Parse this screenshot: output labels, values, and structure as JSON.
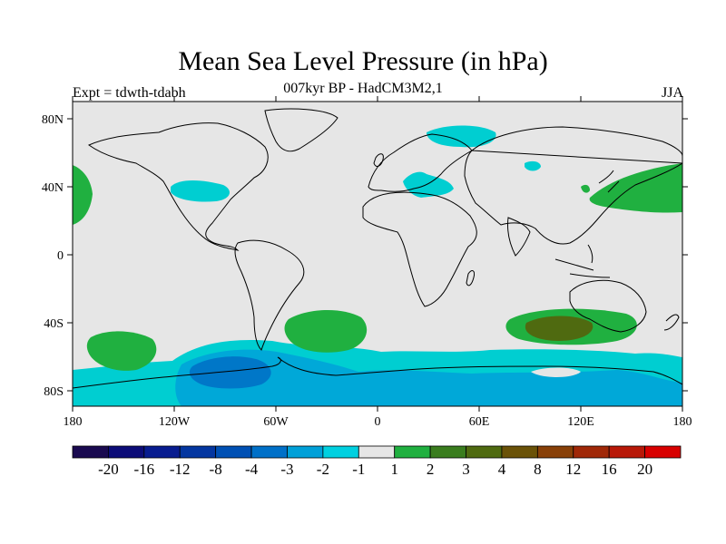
{
  "title": "Mean Sea Level Pressure (in hPa)",
  "subtitle": "007kyr BP - HadCM3M2,1",
  "left_note": "Expt = tdwth-tdabh",
  "right_note": "JJA",
  "map": {
    "background_color": "#e6e6e6",
    "coastline_color": "#000000",
    "x_ticks": [
      "180",
      "120W",
      "60W",
      "0",
      "60E",
      "120E",
      "180"
    ],
    "y_ticks": [
      "80N",
      "40N",
      "0",
      "40S",
      "80S"
    ],
    "fields": [
      {
        "level": "-2",
        "color": "#00ced1",
        "region": "Arctic north of Scandinavia"
      },
      {
        "level": "-2",
        "color": "#00ced1",
        "region": "Northern Russia"
      },
      {
        "level": "-2",
        "color": "#00ced1",
        "region": "North America mid-latitudes"
      },
      {
        "level": "-2",
        "color": "#00ced1",
        "region": "Mediterranean and Black Sea"
      },
      {
        "level": "1",
        "color": "#20b040",
        "region": "North Pacific east"
      },
      {
        "level": "1",
        "color": "#20b040",
        "region": "Northwest Pacific near Japan"
      },
      {
        "level": "1",
        "color": "#20b040",
        "region": "South Pacific"
      },
      {
        "level": "1",
        "color": "#20b040",
        "region": "South Atlantic"
      },
      {
        "level": "1",
        "color": "#20b040",
        "region": "South Indian Ocean"
      },
      {
        "level": "3",
        "color": "#3a7d1e",
        "region": "South Indian Ocean core"
      },
      {
        "level": "-2",
        "color": "#00ced1",
        "region": "Southern Ocean belt"
      },
      {
        "level": "-3",
        "color": "#00a8d8",
        "region": "Southern Ocean inner"
      },
      {
        "level": "-4",
        "color": "#0077c8",
        "region": "Amundsen Sea"
      }
    ]
  },
  "colorbar": {
    "colors": [
      "#1a0a50",
      "#0c0c78",
      "#081c90",
      "#0436a0",
      "#0050b4",
      "#0070c8",
      "#00a0d8",
      "#00d0e0",
      "#e6e6e6",
      "#20b040",
      "#3a7d1e",
      "#4f6a10",
      "#6a5208",
      "#884008",
      "#a02808",
      "#b81808",
      "#d80000"
    ],
    "labels": [
      "-20",
      "-16",
      "-12",
      "-8",
      "-4",
      "-3",
      "-2",
      "-1",
      "1",
      "2",
      "3",
      "4",
      "8",
      "12",
      "16",
      "20"
    ]
  }
}
